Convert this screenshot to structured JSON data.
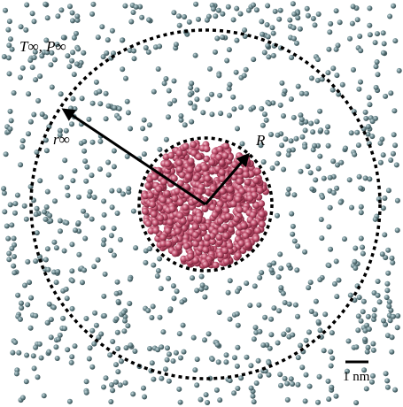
{
  "labels": {
    "ambient": "T∞, P∞",
    "far_radius": "r∞",
    "droplet_radius": "R",
    "scale_bar": "1 nm"
  }
}
